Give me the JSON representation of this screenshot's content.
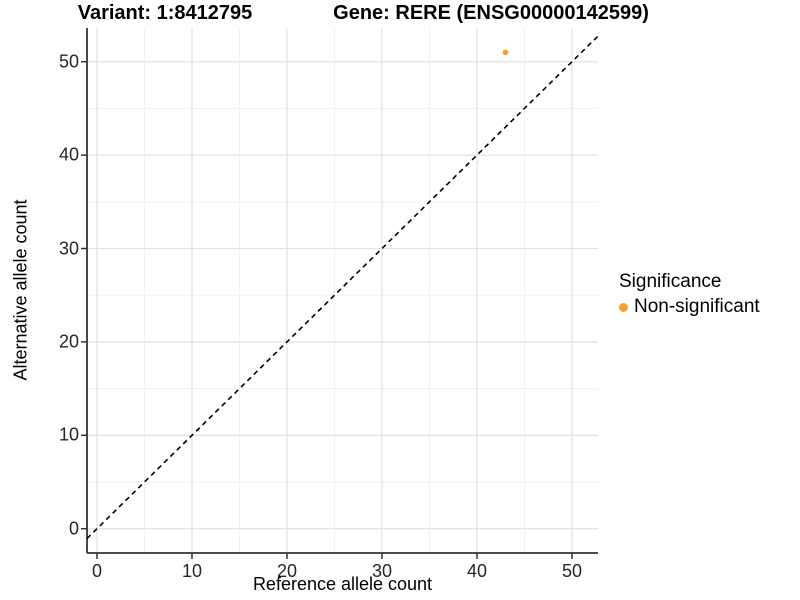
{
  "titles": {
    "variant": "Variant: 1:8412795",
    "gene": "Gene: RERE (ENSG00000142599)"
  },
  "legend": {
    "title": "Significance",
    "items": [
      {
        "label": "Non-significant",
        "color": "#F8A029"
      }
    ]
  },
  "chart_data": {
    "type": "scatter",
    "title": "Variant: 1:8412795 — Gene: RERE (ENSG00000142599)",
    "xlabel": "Reference allele count",
    "ylabel": "Alternative allele count",
    "xlim": [
      -1.05,
      52.74
    ],
    "ylim": [
      -2.6,
      53.61
    ],
    "x_ticks": [
      0,
      10,
      20,
      30,
      40,
      50
    ],
    "y_ticks": [
      0,
      10,
      20,
      30,
      40,
      50
    ],
    "minor_x_ticks": [
      5,
      15,
      25,
      35,
      45
    ],
    "minor_y_ticks": [
      5,
      15,
      25,
      35,
      45
    ],
    "grid": true,
    "legend_position": "right",
    "series": [
      {
        "name": "Non-significant",
        "color": "#F8A029",
        "points": [
          {
            "x": 43,
            "y": 51
          }
        ]
      }
    ],
    "reference_line": {
      "type": "identity",
      "style": "dashed",
      "color": "#000000"
    }
  },
  "colors": {
    "background": "#ffffff",
    "grid_major": "#E3E3E3",
    "grid_minor": "#F1F1F1",
    "axis_line": "#333333",
    "tick_text": "#262626",
    "point": "#F8A029",
    "dashed_line": "#000000"
  }
}
